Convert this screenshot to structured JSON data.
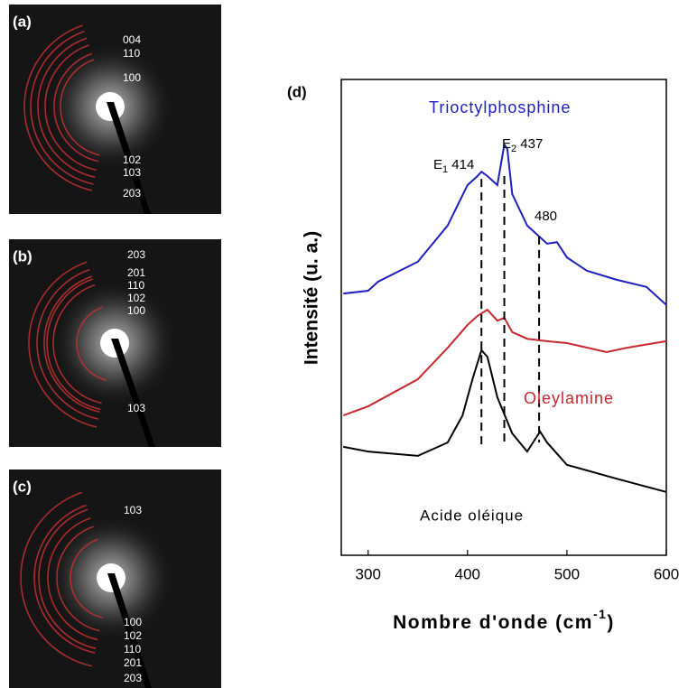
{
  "panels": [
    {
      "label": "(a)",
      "rings": [
        "004",
        "110",
        "100",
        "102",
        "103",
        "203"
      ]
    },
    {
      "label": "(b)",
      "rings": [
        "203",
        "201",
        "110",
        "102",
        "100",
        "103"
      ]
    },
    {
      "label": "(c)",
      "rings": [
        "103",
        "100",
        "102",
        "110",
        "201",
        "203"
      ]
    }
  ],
  "chart_data": {
    "type": "line",
    "panel_label": "(d)",
    "x_label": {
      "text": "Nombre d'onde (cm",
      "sup": "-1",
      "end": ")"
    },
    "y_label": "Intensité (u. a.)",
    "xlim": [
      273,
      600
    ],
    "ylim": [
      0,
      100
    ],
    "xticks": [
      300,
      400,
      500,
      600
    ],
    "series": [
      {
        "name": "Trioctylphosphine",
        "color": "#1f1fbf",
        "x": [
          275,
          300,
          310,
          350,
          380,
          400,
          410,
          414,
          420,
          430,
          437,
          440,
          445,
          460,
          480,
          490,
          500,
          520,
          550,
          580,
          600
        ],
        "values": [
          55.0,
          55.6,
          57.5,
          61.7,
          69.3,
          77.8,
          79.7,
          80.6,
          79.7,
          77.8,
          86.3,
          85.4,
          75.9,
          69.3,
          65.5,
          65.8,
          62.6,
          59.8,
          57.9,
          56.4,
          52.6
        ]
      },
      {
        "name": "Oleylamine",
        "color": "#c8282d",
        "x": [
          275,
          300,
          350,
          380,
          400,
          410,
          420,
          430,
          437,
          445,
          460,
          480,
          500,
          540,
          560,
          600
        ],
        "values": [
          29.4,
          31.3,
          37.0,
          43.6,
          48.4,
          50.3,
          51.6,
          49.3,
          49.9,
          46.9,
          45.5,
          45.0,
          44.6,
          42.7,
          43.6,
          45.0
        ]
      },
      {
        "name": "Acide oléique",
        "color": "#000000",
        "x": [
          275,
          300,
          350,
          380,
          395,
          405,
          414,
          420,
          430,
          445,
          460,
          473,
          480,
          500,
          550,
          600
        ],
        "values": [
          22.8,
          21.8,
          20.9,
          23.7,
          29.4,
          37.0,
          43.1,
          41.7,
          33.2,
          25.6,
          21.8,
          26.0,
          23.7,
          19.0,
          16.1,
          13.3
        ]
      }
    ],
    "reference_lines": [
      {
        "x": 414,
        "y_top": 79.1,
        "y_bottom": 22.8
      },
      {
        "x": 437,
        "y_top": 79.7,
        "y_bottom": 22.8
      },
      {
        "x": 472,
        "y_top": 67.0,
        "y_bottom": 23.7
      }
    ],
    "annotations": [
      {
        "base": "E",
        "sub": "1",
        "rest": " 414"
      },
      {
        "base": "E",
        "sub": "2",
        "rest": " 437"
      },
      {
        "base": "480",
        "sub": "",
        "rest": ""
      }
    ]
  }
}
